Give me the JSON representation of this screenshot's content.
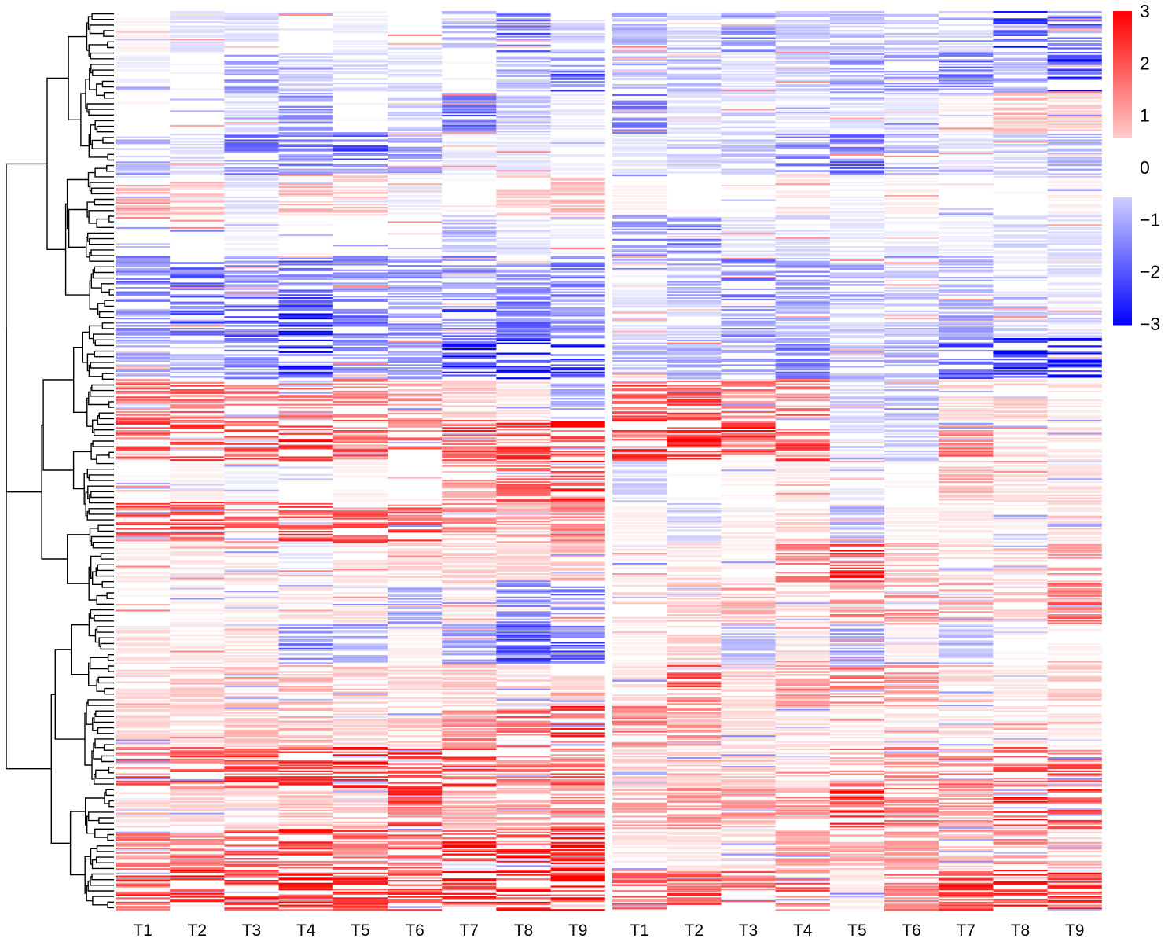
{
  "chart_data": {
    "type": "heatmap",
    "panels": [
      {
        "name": "",
        "columns": [
          "T1",
          "T2",
          "T3",
          "T4",
          "T5",
          "T6",
          "T7",
          "T8",
          "T9"
        ],
        "row_blocks": [
          [
            0.2,
            -0.4,
            -0.5,
            0.0,
            -0.2,
            -0.1,
            -0.8,
            -1.8,
            -0.6
          ],
          [
            -0.2,
            -0.1,
            -1.2,
            -0.6,
            -0.5,
            -0.4,
            0.1,
            -0.9,
            -1.9
          ],
          [
            0.1,
            0.0,
            -0.4,
            -1.3,
            -0.1,
            -0.6,
            -1.7,
            -0.8,
            -0.3
          ],
          [
            -0.9,
            -0.5,
            -1.6,
            -1.5,
            -2.0,
            -1.2,
            -0.3,
            -0.3,
            -0.2
          ],
          [
            1.1,
            0.8,
            -0.4,
            0.9,
            0.7,
            -0.3,
            -0.1,
            0.7,
            0.8
          ],
          [
            0.0,
            0.0,
            -0.2,
            -0.1,
            0.0,
            0.0,
            -0.7,
            -0.3,
            -0.2
          ],
          [
            -1.6,
            -1.8,
            -1.2,
            -1.9,
            -1.3,
            -1.3,
            -1.4,
            -1.2,
            -1.5
          ],
          [
            -1.3,
            -2.1,
            -2.2,
            -2.6,
            -1.7,
            -1.4,
            -2.1,
            -1.7,
            -1.2
          ],
          [
            -1.1,
            -1.0,
            -1.5,
            -2.6,
            -1.3,
            -1.2,
            -2.7,
            -2.9,
            -2.4
          ],
          [
            1.9,
            1.8,
            1.6,
            1.9,
            1.5,
            1.2,
            0.7,
            0.4,
            -1.0
          ],
          [
            2.2,
            2.1,
            2.0,
            2.6,
            1.9,
            1.6,
            2.2,
            2.3,
            2.6
          ],
          [
            0.1,
            0.2,
            -0.2,
            0.0,
            0.2,
            0.1,
            1.1,
            1.9,
            2.4
          ],
          [
            1.9,
            2.1,
            1.8,
            2.4,
            1.9,
            2.0,
            1.3,
            1.1,
            1.6
          ],
          [
            0.3,
            0.4,
            0.5,
            -0.3,
            0.4,
            0.5,
            0.6,
            0.5,
            0.9
          ],
          [
            0.1,
            0.2,
            0.3,
            0.4,
            0.4,
            -1.1,
            0.3,
            -1.4,
            -1.8
          ],
          [
            0.4,
            0.3,
            0.4,
            -1.6,
            -1.0,
            0.2,
            -1.2,
            -2.0,
            -1.9
          ],
          [
            0.5,
            0.6,
            0.7,
            0.9,
            0.8,
            0.5,
            0.7,
            0.6,
            0.5
          ],
          [
            0.6,
            0.5,
            0.8,
            0.9,
            0.6,
            0.7,
            1.5,
            2.0,
            2.5
          ],
          [
            1.9,
            2.3,
            2.4,
            2.5,
            2.8,
            2.6,
            2.2,
            1.6,
            1.9
          ],
          [
            0.5,
            0.6,
            0.5,
            0.8,
            0.7,
            2.2,
            1.0,
            1.2,
            1.8
          ],
          [
            1.5,
            1.7,
            1.9,
            2.3,
            2.0,
            1.9,
            2.6,
            2.9,
            2.9
          ],
          [
            2.3,
            2.5,
            2.4,
            2.8,
            2.5,
            2.4,
            2.8,
            3.0,
            3.0
          ]
        ]
      },
      {
        "name": "",
        "columns": [
          "T1",
          "T2",
          "T3",
          "T4",
          "T5",
          "T6",
          "T7",
          "T8",
          "T9"
        ],
        "row_blocks": [
          [
            -0.9,
            -0.5,
            -1.4,
            -0.7,
            -0.8,
            -0.6,
            -0.5,
            -2.2,
            -1.9
          ],
          [
            -0.8,
            -0.9,
            -0.4,
            -0.6,
            -1.2,
            -1.3,
            -1.6,
            -1.0,
            -2.3
          ],
          [
            -1.5,
            -0.4,
            -0.6,
            -0.3,
            -0.4,
            -0.3,
            0.2,
            0.8,
            0.6
          ],
          [
            -0.3,
            -0.5,
            -0.7,
            -1.4,
            -1.7,
            -1.0,
            -0.4,
            -0.7,
            -0.9
          ],
          [
            0.2,
            0.1,
            0.1,
            0.4,
            -0.2,
            0.2,
            0.0,
            -0.1,
            0.2
          ],
          [
            -1.4,
            -1.6,
            -0.4,
            -0.5,
            -0.3,
            -0.3,
            -0.2,
            -0.5,
            -0.4
          ],
          [
            -0.2,
            -1.0,
            -1.6,
            -1.2,
            -1.1,
            -0.6,
            -0.9,
            -0.3,
            -0.4
          ],
          [
            -0.4,
            -0.6,
            -1.3,
            -0.9,
            -0.5,
            -0.8,
            -1.1,
            -0.7,
            -0.6
          ],
          [
            -0.9,
            -1.0,
            -1.1,
            -1.6,
            -0.9,
            -1.1,
            -1.9,
            -2.6,
            -2.9
          ],
          [
            2.1,
            2.0,
            1.6,
            1.7,
            -0.6,
            -0.8,
            0.5,
            0.6,
            0.3
          ],
          [
            2.3,
            2.5,
            2.3,
            2.1,
            -0.4,
            -0.6,
            1.6,
            0.5,
            0.4
          ],
          [
            -0.6,
            0.1,
            0.2,
            0.3,
            -0.3,
            0.1,
            1.0,
            0.4,
            0.5
          ],
          [
            0.2,
            -0.6,
            0.3,
            0.6,
            -0.9,
            0.2,
            0.3,
            0.2,
            0.4
          ],
          [
            0.3,
            0.4,
            0.2,
            1.4,
            2.6,
            0.8,
            0.5,
            0.8,
            1.2
          ],
          [
            0.5,
            0.7,
            0.9,
            0.6,
            1.4,
            1.3,
            1.0,
            0.7,
            1.7
          ],
          [
            0.2,
            0.6,
            -0.8,
            0.3,
            -1.1,
            0.2,
            -0.7,
            0.1,
            0.2
          ],
          [
            0.4,
            1.9,
            0.6,
            1.3,
            1.5,
            1.2,
            0.5,
            0.3,
            0.6
          ],
          [
            1.4,
            1.2,
            0.4,
            0.5,
            0.3,
            0.4,
            0.5,
            0.4,
            0.3
          ],
          [
            0.6,
            0.5,
            0.7,
            0.5,
            1.5,
            1.4,
            1.6,
            2.1,
            2.0
          ],
          [
            1.0,
            1.3,
            1.2,
            1.3,
            2.3,
            1.6,
            1.2,
            2.6,
            2.3
          ],
          [
            0.4,
            0.4,
            0.5,
            1.1,
            1.0,
            1.1,
            0.7,
            1.3,
            1.0
          ],
          [
            1.8,
            2.2,
            2.0,
            2.0,
            0.3,
            1.7,
            2.3,
            2.3,
            2.5
          ]
        ]
      }
    ],
    "legend": {
      "position": "top-right",
      "ticks": [
        3,
        2,
        1,
        0,
        -1,
        -2,
        -3
      ],
      "range": [
        -3,
        3
      ],
      "low_color": "#0000ff",
      "mid_color": "#ffffff",
      "high_color": "#ff0000"
    },
    "dendrogram": "rows",
    "title": "",
    "xlabel": "",
    "ylabel": ""
  }
}
